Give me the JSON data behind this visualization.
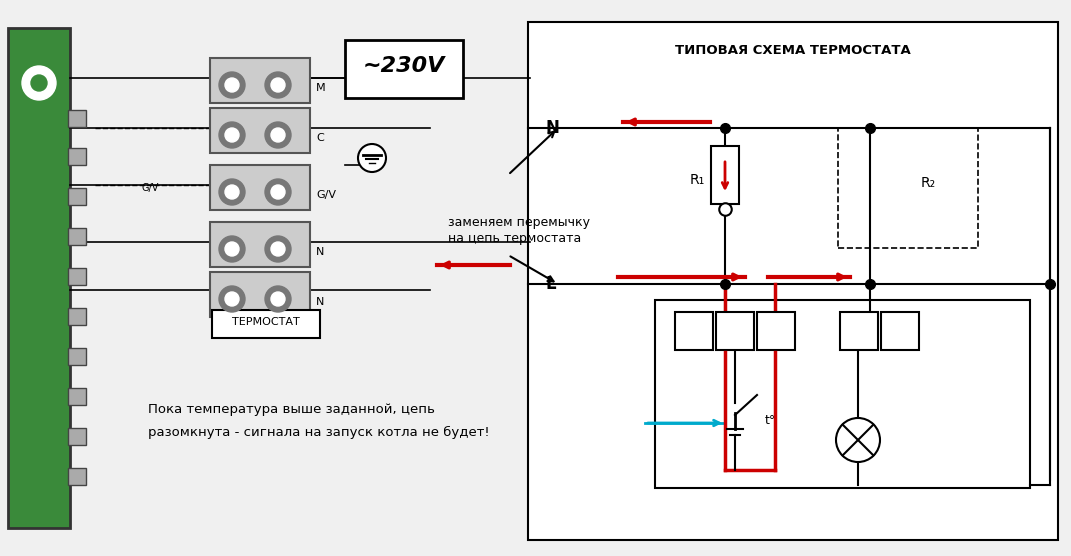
{
  "bg_color": "#f0f0f0",
  "title_right": "ТИПОВАЯ СХЕМА ТЕРМОСТАТА",
  "label_thermostat": "ТЕРМОСТАТ",
  "label_230v": "~230V",
  "label_N": "N",
  "label_L": "L",
  "label_R1": "R₁",
  "label_R2": "R₂",
  "label_t": "t°",
  "label_M": "M",
  "label_C": "C",
  "label_GV": "G/V",
  "text_annotation1": "заменяем перемычку",
  "text_annotation2": "на цепь термостата",
  "text_bottom1": "Пока температура выше заданной, цепь",
  "text_bottom2": "разомкнута - сигнала на запуск котла не будет!",
  "black": "#000000",
  "red": "#cc0000",
  "cyan": "#00aacc",
  "green_pcb": "#3a8a3a",
  "gray_term": "#aaaaaa",
  "gray_dark": "#555555",
  "white": "#ffffff"
}
